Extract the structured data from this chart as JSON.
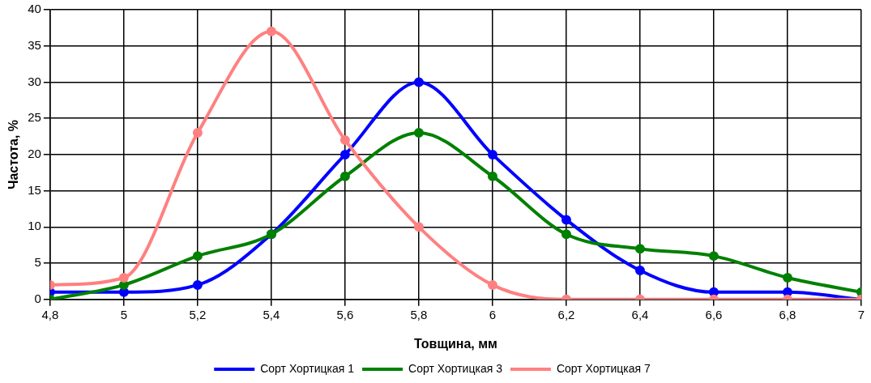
{
  "chart_data": {
    "type": "line",
    "xlabel": "Товщина, мм",
    "ylabel": "Частота, %",
    "x": [
      4.8,
      5,
      5.2,
      5.4,
      5.6,
      5.8,
      6,
      6.2,
      6.4,
      6.6,
      6.8,
      7
    ],
    "series": [
      {
        "name": "Сорт Хортицкая 1",
        "color": "#0000ff",
        "values": [
          1,
          1,
          2,
          9,
          20,
          30,
          20,
          11,
          4,
          1,
          1,
          0
        ]
      },
      {
        "name": "Сорт Хортицкая 3",
        "color": "#008000",
        "values": [
          0,
          2,
          6,
          9,
          17,
          23,
          17,
          9,
          7,
          6,
          3,
          1
        ]
      },
      {
        "name": "Сорт Хортицкая 7",
        "color": "#ff8080",
        "values": [
          2,
          3,
          23,
          37,
          22,
          10,
          2,
          0,
          0,
          0,
          0,
          0
        ]
      }
    ],
    "xlim": [
      4.8,
      7
    ],
    "xticks": [
      {
        "value": 4.8,
        "label": "4,8"
      },
      5,
      {
        "value": 5.2,
        "label": "5,2"
      },
      {
        "value": 5.4,
        "label": "5,4"
      },
      {
        "value": 5.6,
        "label": "5,6"
      },
      {
        "value": 5.8,
        "label": "5,8"
      },
      6,
      {
        "value": 6.2,
        "label": "6,2"
      },
      {
        "value": 6.4,
        "label": "6,4"
      },
      {
        "value": 6.6,
        "label": "6,6"
      },
      {
        "value": 6.8,
        "label": "6,8"
      },
      7
    ],
    "ylim": [
      0,
      40
    ],
    "yticks": [
      0,
      5,
      10,
      15,
      20,
      25,
      30,
      35,
      40
    ],
    "grid": true,
    "legend": "bottom",
    "marker": "circle",
    "line_style": "solid"
  }
}
